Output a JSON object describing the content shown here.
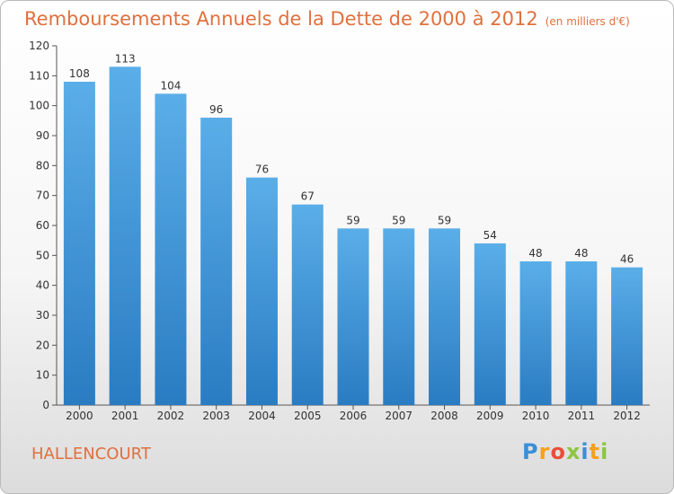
{
  "title": "Remboursements Annuels de la Dette de 2000 à 2012",
  "title_unit": "(en milliers d'€)",
  "commune": "HALLENCOURT",
  "brand": {
    "letters": [
      "P",
      "r",
      "o",
      "x",
      "i",
      "t",
      "i"
    ],
    "colors": [
      "#3a8fd9",
      "#f7a11a",
      "#e94e3a",
      "#8cc63f",
      "#3a8fd9",
      "#f7a11a",
      "#8cc63f"
    ]
  },
  "colors": {
    "bar_light": "#5aaee8",
    "bar_dark": "#2a7cc2",
    "accent_text": "#e0703d"
  },
  "chart_data": {
    "type": "bar",
    "categories": [
      "2000",
      "2001",
      "2002",
      "2003",
      "2004",
      "2005",
      "2006",
      "2007",
      "2008",
      "2009",
      "2010",
      "2011",
      "2012"
    ],
    "values": [
      108,
      113,
      104,
      96,
      76,
      67,
      59,
      59,
      59,
      54,
      48,
      48,
      46
    ],
    "ylim": [
      0,
      120
    ],
    "yticks": [
      0,
      10,
      20,
      30,
      40,
      50,
      60,
      70,
      80,
      90,
      100,
      110,
      120
    ],
    "grid": false,
    "legend": "none"
  }
}
